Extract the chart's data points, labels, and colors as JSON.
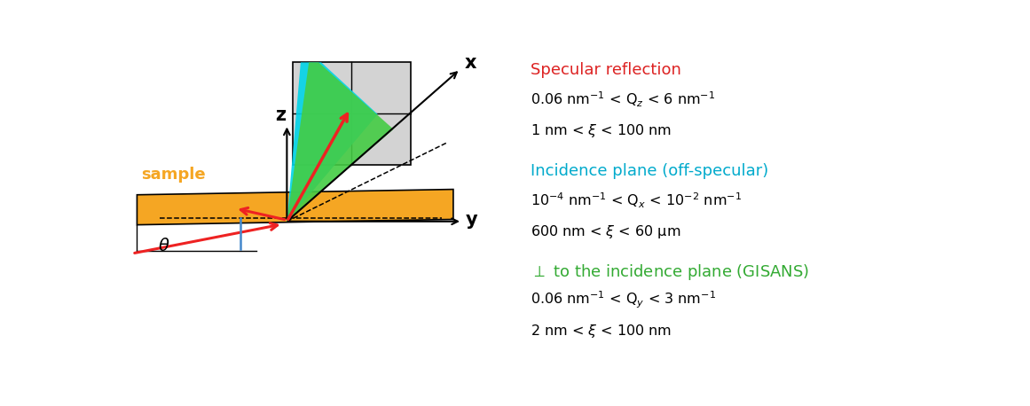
{
  "bg_color": "#ffffff",
  "sample_color": "#f5a623",
  "sample_edge_color": "#000000",
  "detector_bg": "#d3d3d3",
  "detector_edge": "#000000",
  "cyan_color": "#00d4e8",
  "green_color": "#44cc44",
  "red_color": "#ee2222",
  "blue_color": "#4488cc",
  "orange_label_color": "#f5a623",
  "specular_color": "#dd2222",
  "offspecular_color": "#00aacc",
  "gisans_color": "#33aa33",
  "text_black": "#000000",
  "section1_title": "Specular reflection",
  "section1_line1": "0.06 nm$^{-1}$ < Q$_z$ < 6 nm$^{-1}$",
  "section1_line2": "1 nm < $\\xi$ < 100 nm",
  "section2_title": "Incidence plane (off-specular)",
  "section2_line1": "10$^{-4}$ nm$^{-1}$ < Q$_x$ < 10$^{-2}$ nm$^{-1}$",
  "section2_line2": "600 nm < $\\xi$ < 60 μm",
  "section3_title": "$\\perp$ to the incidence plane (GISANS)",
  "section3_line1": "0.06 nm$^{-1}$ < Q$_y$ < 3 nm$^{-1}$",
  "section3_line2": "2 nm < $\\xi$ < 100 nm"
}
